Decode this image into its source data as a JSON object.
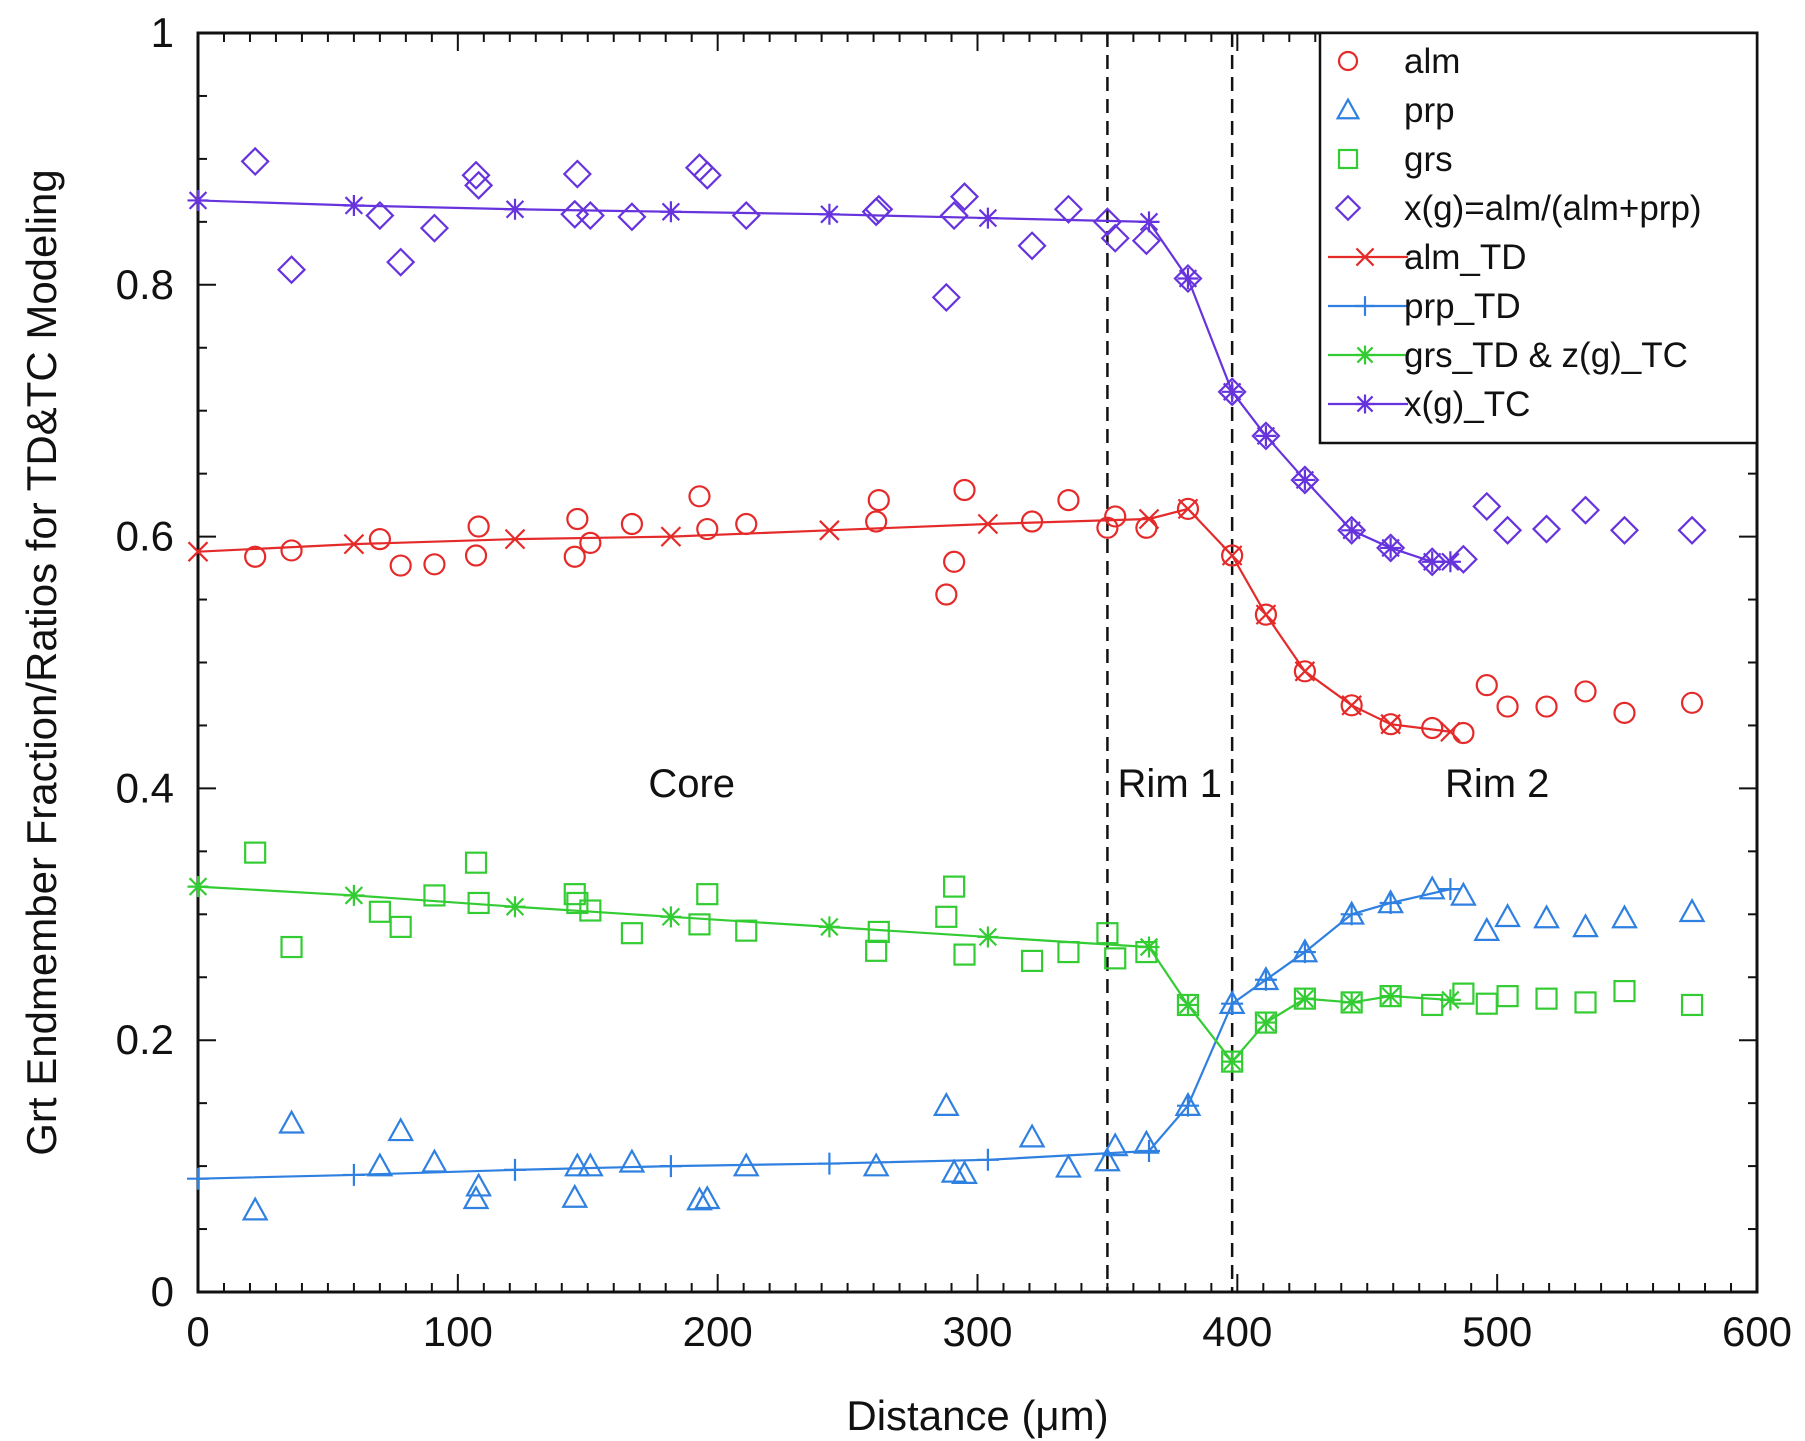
{
  "chart_data": {
    "type": "scatter",
    "xlabel": "Distance (μm)",
    "ylabel": "Grt Endmember Fraction/Ratios for TD&TC Modeling",
    "xlim": [
      0,
      600
    ],
    "ylim": [
      0,
      1
    ],
    "x_ticks": [
      0,
      100,
      200,
      300,
      400,
      500,
      600
    ],
    "y_ticks": [
      0,
      0.2,
      0.4,
      0.6,
      0.8,
      1
    ],
    "x_tick_labels": [
      "0",
      "100",
      "200",
      "300",
      "400",
      "500",
      "600"
    ],
    "y_tick_labels": [
      "0",
      "0.2",
      "0.4",
      "0.6",
      "0.8",
      "1"
    ],
    "grid": false,
    "legend_position": "top-right",
    "boundaries": [
      350,
      398
    ],
    "annotations": [
      {
        "text": "Core",
        "x": 190,
        "y": 0.393
      },
      {
        "text": "Rim 1",
        "x": 374,
        "y": 0.393
      },
      {
        "text": "Rim 2",
        "x": 500,
        "y": 0.393
      }
    ],
    "colors": {
      "red": "#e52a2a",
      "blue": "#2f80e0",
      "green": "#33cc33",
      "purple": "#6633dd"
    },
    "series": [
      {
        "name": "alm",
        "kind": "marker",
        "marker": "circle",
        "color": "#e52a2a",
        "x": [
          22,
          36,
          70,
          78,
          91,
          107,
          108,
          145,
          146,
          151,
          167,
          193,
          196,
          211,
          261,
          262,
          288,
          291,
          295,
          321,
          335,
          350,
          353,
          365,
          381,
          398,
          411,
          426,
          444,
          459,
          475,
          487,
          496,
          504,
          519,
          534,
          549,
          575
        ],
        "y": [
          0.584,
          0.589,
          0.598,
          0.577,
          0.578,
          0.585,
          0.608,
          0.584,
          0.614,
          0.595,
          0.61,
          0.632,
          0.606,
          0.61,
          0.612,
          0.629,
          0.554,
          0.58,
          0.637,
          0.612,
          0.629,
          0.607,
          0.616,
          0.607,
          0.622,
          0.585,
          0.538,
          0.493,
          0.466,
          0.451,
          0.448,
          0.444,
          0.482,
          0.465,
          0.465,
          0.477,
          0.46,
          0.468
        ]
      },
      {
        "name": "prp",
        "kind": "marker",
        "marker": "triangle",
        "color": "#2f80e0",
        "x": [
          22,
          36,
          70,
          78,
          91,
          107,
          108,
          145,
          146,
          151,
          167,
          193,
          196,
          211,
          261,
          288,
          291,
          295,
          321,
          335,
          350,
          353,
          365,
          381,
          398,
          411,
          426,
          444,
          459,
          475,
          487,
          496,
          504,
          519,
          534,
          549,
          575
        ],
        "y": [
          0.065,
          0.134,
          0.1,
          0.128,
          0.103,
          0.074,
          0.084,
          0.075,
          0.1,
          0.1,
          0.103,
          0.073,
          0.074,
          0.1,
          0.1,
          0.148,
          0.095,
          0.094,
          0.123,
          0.099,
          0.104,
          0.116,
          0.118,
          0.148,
          0.229,
          0.248,
          0.27,
          0.3,
          0.309,
          0.32,
          0.315,
          0.287,
          0.298,
          0.297,
          0.29,
          0.297,
          0.302
        ]
      },
      {
        "name": "grs",
        "kind": "marker",
        "marker": "square",
        "color": "#33cc33",
        "x": [
          22,
          36,
          70,
          78,
          91,
          107,
          108,
          145,
          146,
          151,
          167,
          193,
          196,
          211,
          261,
          262,
          288,
          291,
          295,
          321,
          335,
          350,
          353,
          365,
          381,
          398,
          411,
          426,
          444,
          459,
          475,
          487,
          496,
          504,
          519,
          534,
          549,
          575
        ],
        "y": [
          0.349,
          0.274,
          0.302,
          0.29,
          0.315,
          0.341,
          0.309,
          0.316,
          0.309,
          0.303,
          0.285,
          0.292,
          0.316,
          0.287,
          0.271,
          0.286,
          0.298,
          0.322,
          0.268,
          0.263,
          0.27,
          0.285,
          0.265,
          0.27,
          0.228,
          0.183,
          0.214,
          0.233,
          0.23,
          0.235,
          0.228,
          0.237,
          0.229,
          0.235,
          0.233,
          0.23,
          0.239,
          0.228
        ]
      },
      {
        "name": "x(g)=alm/(alm+prp)",
        "kind": "marker",
        "marker": "diamond",
        "color": "#6633dd",
        "x": [
          22,
          36,
          70,
          78,
          91,
          107,
          108,
          145,
          146,
          151,
          167,
          193,
          196,
          211,
          261,
          262,
          288,
          291,
          295,
          321,
          335,
          350,
          353,
          365,
          381,
          398,
          411,
          426,
          444,
          459,
          475,
          487,
          496,
          504,
          519,
          534,
          549,
          575
        ],
        "y": [
          0.898,
          0.812,
          0.855,
          0.818,
          0.845,
          0.887,
          0.879,
          0.856,
          0.888,
          0.855,
          0.854,
          0.893,
          0.887,
          0.855,
          0.858,
          0.86,
          0.79,
          0.855,
          0.87,
          0.831,
          0.86,
          0.85,
          0.837,
          0.835,
          0.805,
          0.715,
          0.68,
          0.645,
          0.605,
          0.591,
          0.58,
          0.582,
          0.624,
          0.605,
          0.606,
          0.621,
          0.605,
          0.605
        ]
      },
      {
        "name": "alm_TD",
        "kind": "line",
        "marker": "x",
        "color": "#e52a2a",
        "x": [
          0,
          60,
          122,
          182,
          243,
          304,
          366,
          381,
          398,
          411,
          426,
          444,
          459,
          482
        ],
        "y": [
          0.588,
          0.594,
          0.598,
          0.6,
          0.605,
          0.61,
          0.614,
          0.622,
          0.585,
          0.538,
          0.493,
          0.466,
          0.451,
          0.445
        ]
      },
      {
        "name": "prp_TD",
        "kind": "line",
        "marker": "plus",
        "color": "#2f80e0",
        "x": [
          0,
          60,
          122,
          182,
          243,
          304,
          366,
          381,
          398,
          411,
          426,
          444,
          459,
          482
        ],
        "y": [
          0.09,
          0.093,
          0.097,
          0.1,
          0.102,
          0.105,
          0.112,
          0.148,
          0.229,
          0.248,
          0.27,
          0.3,
          0.309,
          0.32
        ]
      },
      {
        "name": "grs_TD & z(g)_TC",
        "kind": "line",
        "marker": "star",
        "color": "#33cc33",
        "x": [
          0,
          60,
          122,
          182,
          243,
          304,
          366,
          381,
          398,
          411,
          426,
          444,
          459,
          482
        ],
        "y": [
          0.322,
          0.315,
          0.306,
          0.298,
          0.29,
          0.282,
          0.274,
          0.228,
          0.183,
          0.214,
          0.233,
          0.23,
          0.235,
          0.232
        ]
      },
      {
        "name": "x(g)_TC",
        "kind": "line",
        "marker": "star",
        "color": "#6633dd",
        "x": [
          0,
          60,
          122,
          182,
          243,
          304,
          366,
          381,
          398,
          411,
          426,
          444,
          459,
          475,
          482
        ],
        "y": [
          0.867,
          0.863,
          0.86,
          0.858,
          0.856,
          0.853,
          0.85,
          0.805,
          0.715,
          0.68,
          0.645,
          0.605,
          0.591,
          0.58,
          0.58
        ]
      }
    ]
  }
}
